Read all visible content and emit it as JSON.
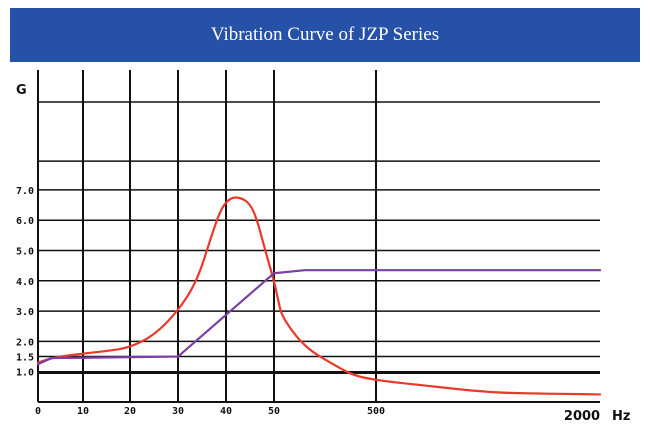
{
  "header": {
    "title": "Vibration Curve of JZP Series"
  },
  "chart_data": {
    "type": "line",
    "title": "Vibration Curve of JZP Series",
    "ylabel": "G",
    "xlabel": "Hz",
    "x_tick_labels": [
      "0",
      "10",
      "20",
      "30",
      "40",
      "50",
      "500",
      "2000"
    ],
    "y_tick_labels": [
      "1.0",
      "1.5",
      "2.0",
      "3.0",
      "4.0",
      "5.0",
      "6.0",
      "7.0"
    ],
    "ylim": [
      0,
      8
    ],
    "grid": true,
    "x_scale": "piecewise (0–50 linear, then 500, 2000)",
    "colors": {
      "red_series": "#e8392b",
      "purple_series": "#7b3fa3",
      "banner": "#2552a6"
    },
    "series": [
      {
        "color": "#e8392b",
        "x": [
          0,
          3,
          6,
          10,
          15,
          20,
          25,
          30,
          34,
          37,
          39,
          41,
          43,
          45,
          46.5,
          48,
          50,
          55,
          60,
          100,
          200,
          300,
          500,
          700,
          1000,
          1300,
          1600,
          2000
        ],
        "y": [
          1.3,
          1.45,
          1.52,
          1.6,
          1.68,
          1.8,
          2.2,
          3.0,
          4.0,
          5.5,
          6.4,
          6.75,
          6.75,
          6.55,
          6.0,
          5.1,
          4.0,
          3.35,
          2.8,
          1.8,
          1.2,
          0.88,
          0.72,
          0.52,
          0.32,
          0.28,
          0.27,
          0.25
        ]
      },
      {
        "color": "#7b3fa3",
        "x": [
          0,
          3,
          10,
          20,
          30,
          50,
          100,
          500,
          2000
        ],
        "y": [
          1.25,
          1.45,
          1.46,
          1.48,
          1.5,
          4.25,
          4.35,
          4.35,
          4.35
        ]
      }
    ]
  }
}
